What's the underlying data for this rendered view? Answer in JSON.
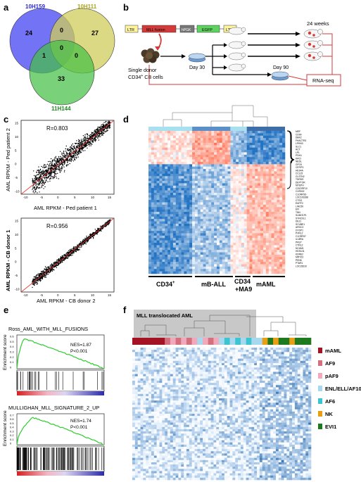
{
  "panels": {
    "a": {
      "letter": "a",
      "sets": [
        {
          "name": "10H159",
          "color": "#4a4af0"
        },
        {
          "name": "10H111",
          "color": "#d6d24a"
        },
        {
          "name": "11H144",
          "color": "#3dbb3d"
        }
      ],
      "counts": {
        "only_10H159": "24",
        "only_10H111": "27",
        "only_11H144": "33",
        "ab": "0",
        "ac": "1",
        "bc": "0",
        "abc": "0"
      }
    },
    "b": {
      "letter": "b",
      "construct": [
        "LTR",
        "MLL fusion",
        "hPGK",
        "EGFP",
        "LTR"
      ],
      "timeline_24": "24 weeks",
      "day30": "Day 30",
      "day90": "Day 90",
      "source_line1": "Single donor",
      "source_line2": "CD34",
      "source_sup": "+",
      "source_line2_rest": " CB cells",
      "assay": "RNA-seq"
    },
    "c": {
      "letter": "c",
      "plots": [
        {
          "r_label": "R=0.803",
          "xlabel": "AML RPKM - Ped patient 1",
          "ylabel": "AML RPKM - Ped patient 2",
          "xticks": [
            "-10",
            "-5",
            "0",
            "5",
            "10",
            "15"
          ],
          "yticks": [
            "-10",
            "-5",
            "0",
            "5",
            "10",
            "15"
          ]
        },
        {
          "r_label": "R=0.956",
          "xlabel": "AML RPKM - CB donor 2",
          "ylabel": "AML RPKM - CB donor 1",
          "xticks": [
            "-10",
            "-5",
            "0",
            "5",
            "10",
            "15"
          ],
          "yticks": [
            "-10",
            "-5",
            "0",
            "5",
            "10",
            "15"
          ]
        }
      ]
    },
    "d": {
      "letter": "d",
      "group_labels": [
        "CD34+",
        "mB-ALL",
        "CD34\n+MA9",
        "mAML"
      ],
      "g1": "CD34",
      "g1sup": "+",
      "g2": "mB-ALL",
      "g3a": "CD34",
      "g3b": "+MA9",
      "g4": "mAML",
      "genes": [
        "MEF",
        "CD99",
        "DBK2",
        "FHACTR3",
        "LPHN3",
        "SLC1",
        "ACT",
        "LPL",
        "PDK4",
        "KRCI",
        "NEDL",
        "GFCK",
        "CEFIP1",
        "HES4A",
        "CCL23",
        "CLSTN2",
        "TDRDS",
        "DEPTOR",
        "MYEPH",
        "C20ORF10",
        "CXR002",
        "C1ORF5D",
        "LOC100288",
        "CTSG",
        "EMTF2",
        "LINC50",
        "EFI",
        "TNN",
        "SUMO1P1",
        "SYNC0L1",
        "DEJ1",
        "SCUBE1",
        "ARGC2",
        "DYDP1",
        "PVRL2",
        "C1ORF87",
        "IL18RA",
        "PRLP",
        "CTRL2",
        "NCAM1",
        "HDSU11",
        "KDRE2",
        "MRTZ3",
        "PENK",
        "PTAR1",
        "LOC28310"
      ]
    },
    "e": {
      "letter": "e",
      "plots": [
        {
          "title": "Ross_AML_WITH_MLL_FUSIONS",
          "nes": "NES=1.87",
          "p": "P<0.001",
          "ylabel": "Enrichment score",
          "yticks": [
            "0.6",
            "0.5",
            "0.4",
            "0.3",
            "0.2",
            "0.1",
            "0"
          ]
        },
        {
          "title": "MULLIGHAN_MLL_SIGNATURE_2_UP",
          "nes": "NES=1.74",
          "p": "P<0.001",
          "ylabel": "Enrichment score",
          "yticks": [
            "0.7",
            "0.6",
            "0.5",
            "0.4",
            "0.3",
            "0.2",
            "0.1",
            "0"
          ]
        }
      ]
    },
    "f": {
      "letter": "f",
      "cluster_label": "MLL translocated AML",
      "legend": [
        {
          "label": "mAML",
          "color": "#a31323"
        },
        {
          "label": "AF9",
          "color": "#d4707d"
        },
        {
          "label": "pAF9",
          "color": "#f0aabb"
        },
        {
          "label": "ENL/ELL/AF10",
          "color": "#a8d8ee"
        },
        {
          "label": "AF6",
          "color": "#3cc4d0"
        },
        {
          "label": "NK",
          "color": "#e89f14"
        },
        {
          "label": "EVI1",
          "color": "#1e7a1e"
        }
      ]
    }
  }
}
